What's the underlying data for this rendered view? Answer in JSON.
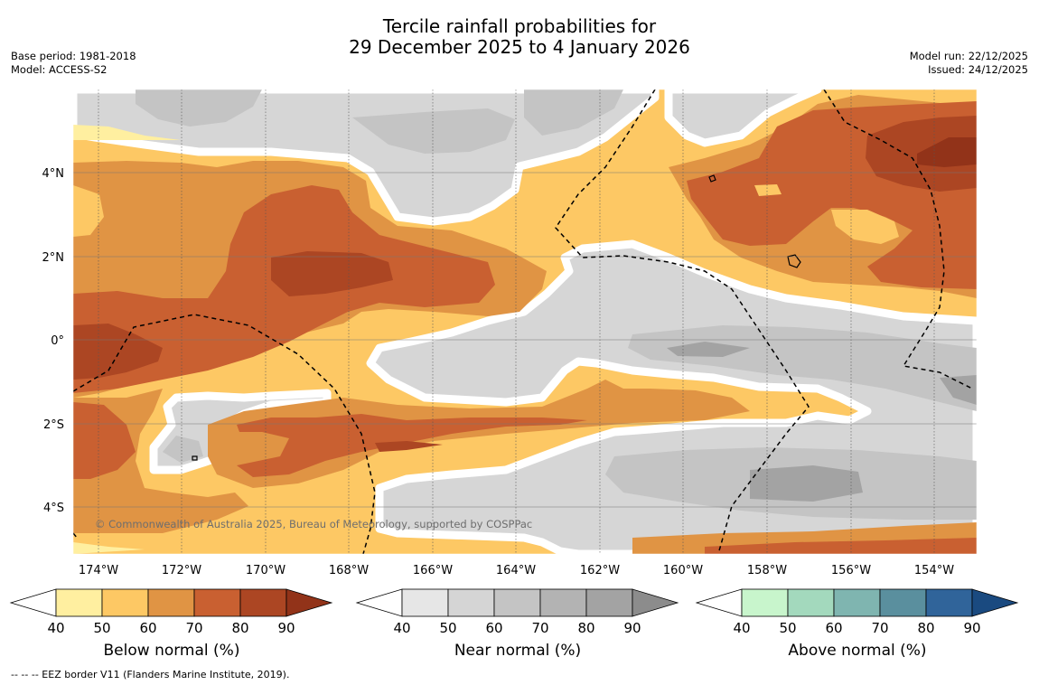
{
  "title_line1": "Tercile rainfall probabilities for",
  "title_line2": "29 December 2025 to 4 January 2026",
  "base_period": "Base period: 1981-2018",
  "model": "Model: ACCESS-S2",
  "model_run": "Model run: 22/12/2025",
  "issued": "Issued: 24/12/2025",
  "copyright": "© Commonwealth of Australia 2025, Bureau of Meteorology, supported by COSPPac",
  "footnote": "--  --  -- EEZ border V11 (Flanders Marine Institute, 2019).",
  "lat_labels": [
    "4°N",
    "2°N",
    "0°",
    "2°S",
    "4°S"
  ],
  "lon_labels": [
    "174°W",
    "172°W",
    "170°W",
    "168°W",
    "166°W",
    "164°W",
    "162°W",
    "160°W",
    "158°W",
    "156°W",
    "154°W"
  ],
  "colorbars": [
    {
      "name": "below",
      "label": "Below normal (%)",
      "ticks": [
        "40",
        "50",
        "60",
        "70",
        "80",
        "90"
      ],
      "colors": [
        "#ffefa0",
        "#fdc864",
        "#e09444",
        "#c96031",
        "#ac4623"
      ],
      "over_color": "#923319"
    },
    {
      "name": "near",
      "label": "Near normal (%)",
      "ticks": [
        "40",
        "50",
        "60",
        "70",
        "80",
        "90"
      ],
      "colors": [
        "#e6e6e6",
        "#d5d5d5",
        "#c4c4c4",
        "#b3b3b3",
        "#a3a3a3"
      ],
      "over_color": "#8c8c8c"
    },
    {
      "name": "above",
      "label": "Above normal (%)",
      "ticks": [
        "40",
        "50",
        "60",
        "70",
        "80",
        "90"
      ],
      "colors": [
        "#c8f5cc",
        "#a3d9bd",
        "#7fb5b0",
        "#5a8f9e",
        "#30649a"
      ],
      "over_color": "#1a4a80"
    }
  ]
}
